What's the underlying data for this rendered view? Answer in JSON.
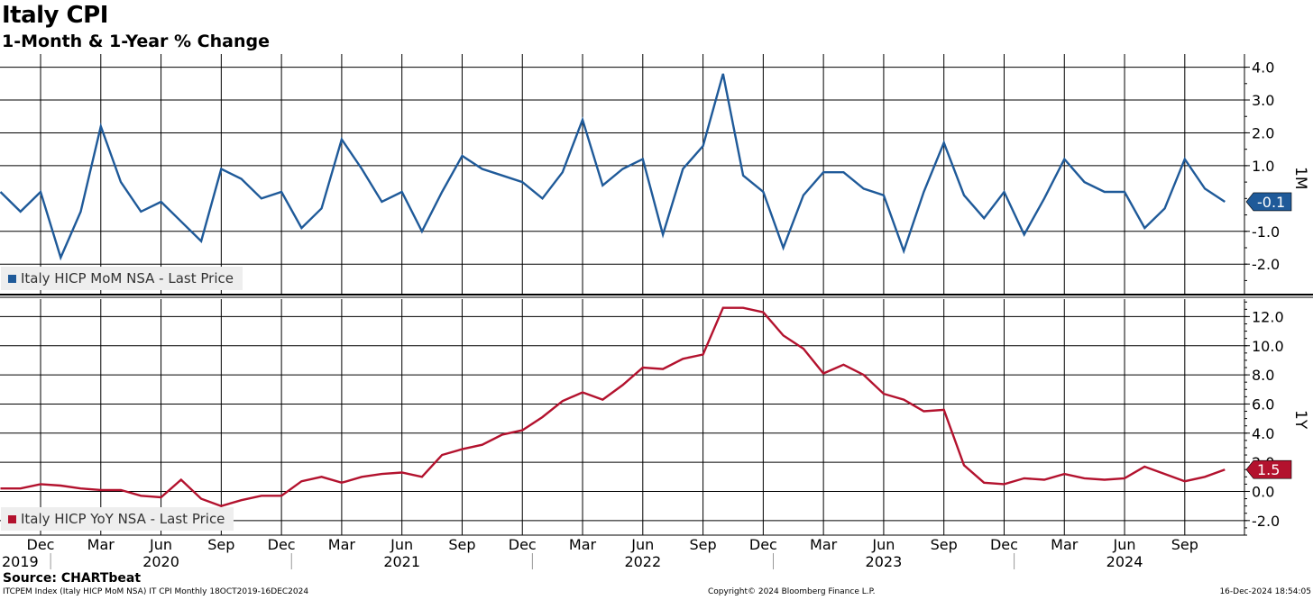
{
  "title": "Italy CPI",
  "subtitle": "1-Month & 1-Year % Change",
  "source": "Source: CHARTbeat",
  "footer": {
    "left": "ITCPEM Index (Italy HICP MoM NSA) IT CPI  Monthly 18OCT2019-16DEC2024",
    "center": "Copyright© 2024 Bloomberg Finance L.P.",
    "right": "16-Dec-2024 18:54:05"
  },
  "chart_data": [
    {
      "type": "line",
      "panel_label": "1M",
      "series": [
        {
          "name": "Italy HICP MoM NSA - Last Price",
          "color": "#1f5a99",
          "x": [
            "2019-10",
            "2019-11",
            "2019-12",
            "2020-01",
            "2020-02",
            "2020-03",
            "2020-04",
            "2020-05",
            "2020-06",
            "2020-07",
            "2020-08",
            "2020-09",
            "2020-10",
            "2020-11",
            "2020-12",
            "2021-01",
            "2021-02",
            "2021-03",
            "2021-04",
            "2021-05",
            "2021-06",
            "2021-07",
            "2021-08",
            "2021-09",
            "2021-10",
            "2021-11",
            "2021-12",
            "2022-01",
            "2022-02",
            "2022-03",
            "2022-04",
            "2022-05",
            "2022-06",
            "2022-07",
            "2022-08",
            "2022-09",
            "2022-10",
            "2022-11",
            "2022-12",
            "2023-01",
            "2023-02",
            "2023-03",
            "2023-04",
            "2023-05",
            "2023-06",
            "2023-07",
            "2023-08",
            "2023-09",
            "2023-10",
            "2023-11",
            "2023-12",
            "2024-01",
            "2024-02",
            "2024-03",
            "2024-04",
            "2024-05",
            "2024-06",
            "2024-07",
            "2024-08",
            "2024-09",
            "2024-10",
            "2024-11"
          ],
          "values": [
            0.2,
            -0.4,
            0.2,
            -1.8,
            -0.4,
            2.2,
            0.5,
            -0.4,
            -0.1,
            -0.7,
            -1.3,
            0.9,
            0.6,
            0.0,
            0.2,
            -0.9,
            -0.3,
            1.8,
            0.9,
            -0.1,
            0.2,
            -1.0,
            0.2,
            1.3,
            0.9,
            0.7,
            0.5,
            0.0,
            0.8,
            2.4,
            0.4,
            0.9,
            1.2,
            -1.1,
            0.9,
            1.6,
            3.8,
            0.7,
            0.2,
            -1.5,
            0.1,
            0.8,
            0.8,
            0.3,
            0.1,
            -1.6,
            0.2,
            1.7,
            0.1,
            -0.6,
            0.2,
            -1.1,
            0.0,
            1.2,
            0.5,
            0.2,
            0.2,
            -0.9,
            -0.3,
            1.2,
            0.3,
            -0.1
          ]
        }
      ],
      "last_value_label": "-0.1",
      "ylim": [
        -2.9,
        4.4
      ],
      "yticks": [
        4.0,
        3.0,
        2.0,
        1.0,
        -1.0,
        -2.0
      ],
      "ytick_labels": [
        "4.0",
        "3.0",
        "2.0",
        "1.0",
        "-1.0",
        "-2.0"
      ],
      "grid": true,
      "legend_position": "bottom-left"
    },
    {
      "type": "line",
      "panel_label": "1Y",
      "series": [
        {
          "name": "Italy HICP YoY NSA - Last Price",
          "color": "#b3122e",
          "x": [
            "2019-10",
            "2019-11",
            "2019-12",
            "2020-01",
            "2020-02",
            "2020-03",
            "2020-04",
            "2020-05",
            "2020-06",
            "2020-07",
            "2020-08",
            "2020-09",
            "2020-10",
            "2020-11",
            "2020-12",
            "2021-01",
            "2021-02",
            "2021-03",
            "2021-04",
            "2021-05",
            "2021-06",
            "2021-07",
            "2021-08",
            "2021-09",
            "2021-10",
            "2021-11",
            "2021-12",
            "2022-01",
            "2022-02",
            "2022-03",
            "2022-04",
            "2022-05",
            "2022-06",
            "2022-07",
            "2022-08",
            "2022-09",
            "2022-10",
            "2022-11",
            "2022-12",
            "2023-01",
            "2023-02",
            "2023-03",
            "2023-04",
            "2023-05",
            "2023-06",
            "2023-07",
            "2023-08",
            "2023-09",
            "2023-10",
            "2023-11",
            "2023-12",
            "2024-01",
            "2024-02",
            "2024-03",
            "2024-04",
            "2024-05",
            "2024-06",
            "2024-07",
            "2024-08",
            "2024-09",
            "2024-10",
            "2024-11"
          ],
          "values": [
            0.2,
            0.2,
            0.5,
            0.4,
            0.2,
            0.1,
            0.1,
            -0.3,
            -0.4,
            0.8,
            -0.5,
            -1.0,
            -0.6,
            -0.3,
            -0.3,
            0.7,
            1.0,
            0.6,
            1.0,
            1.2,
            1.3,
            1.0,
            2.5,
            2.9,
            3.2,
            3.9,
            4.2,
            5.1,
            6.2,
            6.8,
            6.3,
            7.3,
            8.5,
            8.4,
            9.1,
            9.4,
            12.6,
            12.6,
            12.3,
            10.7,
            9.8,
            8.1,
            8.7,
            8.0,
            6.7,
            6.3,
            5.5,
            5.6,
            1.8,
            0.6,
            0.5,
            0.9,
            0.8,
            1.2,
            0.9,
            0.8,
            0.9,
            1.7,
            1.2,
            0.7,
            1.0,
            1.5
          ]
        }
      ],
      "last_value_label": "1.5",
      "ylim": [
        -3.0,
        13.2
      ],
      "yticks": [
        12.0,
        10.0,
        8.0,
        6.0,
        4.0,
        2.0,
        0.0,
        -2.0
      ],
      "ytick_labels": [
        "12.0",
        "10.0",
        "8.0",
        "6.0",
        "4.0",
        "2.0",
        "0.0",
        "-2.0"
      ],
      "grid": true,
      "legend_position": "bottom-left"
    }
  ],
  "x_axis": {
    "month_ticks": [
      {
        "m": "2019-12",
        "label": "Dec"
      },
      {
        "m": "2020-03",
        "label": "Mar"
      },
      {
        "m": "2020-06",
        "label": "Jun"
      },
      {
        "m": "2020-09",
        "label": "Sep"
      },
      {
        "m": "2020-12",
        "label": "Dec"
      },
      {
        "m": "2021-03",
        "label": "Mar"
      },
      {
        "m": "2021-06",
        "label": "Jun"
      },
      {
        "m": "2021-09",
        "label": "Sep"
      },
      {
        "m": "2021-12",
        "label": "Dec"
      },
      {
        "m": "2022-03",
        "label": "Mar"
      },
      {
        "m": "2022-06",
        "label": "Jun"
      },
      {
        "m": "2022-09",
        "label": "Sep"
      },
      {
        "m": "2022-12",
        "label": "Dec"
      },
      {
        "m": "2023-03",
        "label": "Mar"
      },
      {
        "m": "2023-06",
        "label": "Jun"
      },
      {
        "m": "2023-09",
        "label": "Sep"
      },
      {
        "m": "2023-12",
        "label": "Dec"
      },
      {
        "m": "2024-03",
        "label": "Mar"
      },
      {
        "m": "2024-06",
        "label": "Jun"
      },
      {
        "m": "2024-09",
        "label": "Sep"
      }
    ],
    "year_labels": [
      {
        "m": "2019-12",
        "label": "2019"
      },
      {
        "m": "2020-06",
        "label": "2020"
      },
      {
        "m": "2021-06",
        "label": "2021"
      },
      {
        "m": "2022-06",
        "label": "2022"
      },
      {
        "m": "2023-06",
        "label": "2023"
      },
      {
        "m": "2024-06",
        "label": "2024"
      }
    ]
  }
}
